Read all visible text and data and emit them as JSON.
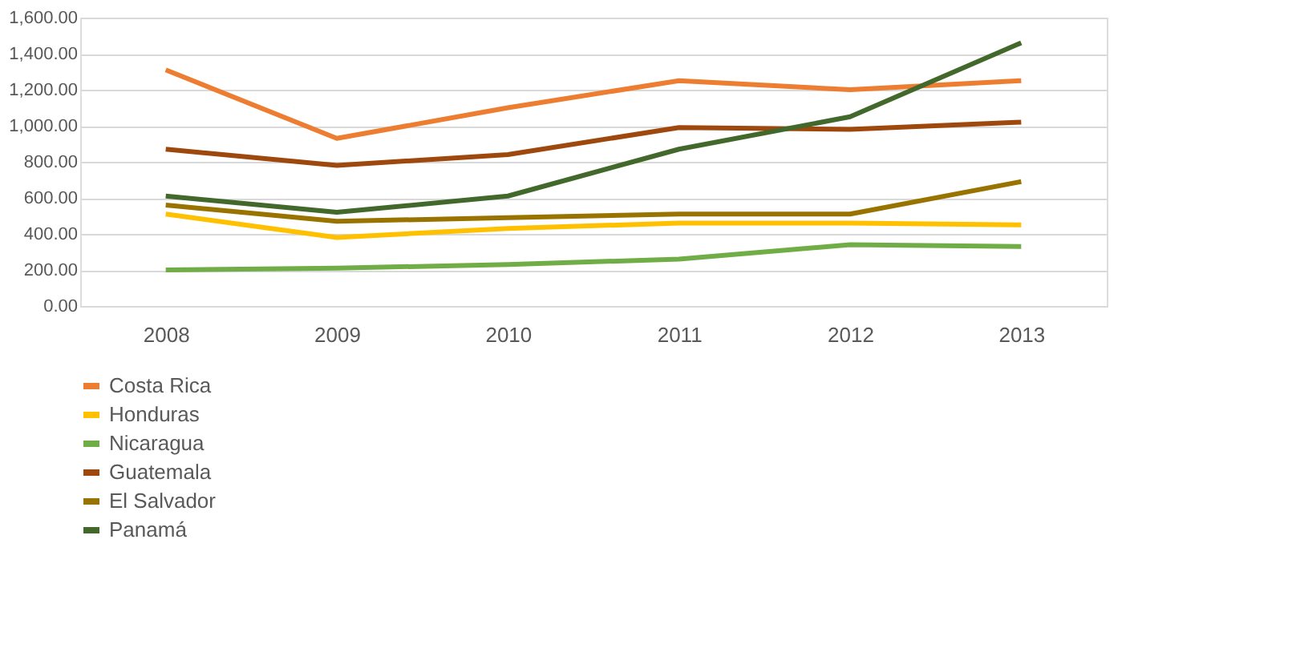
{
  "chart_data": {
    "type": "line",
    "categories": [
      "2008",
      "2009",
      "2010",
      "2011",
      "2012",
      "2013"
    ],
    "series": [
      {
        "name": "Costa Rica",
        "color": "#ed7d31",
        "values": [
          1310,
          930,
          1100,
          1250,
          1200,
          1250
        ]
      },
      {
        "name": "Honduras",
        "color": "#ffc000",
        "values": [
          510,
          380,
          430,
          460,
          460,
          450
        ]
      },
      {
        "name": "Nicaragua",
        "color": "#70ad47",
        "values": [
          200,
          210,
          230,
          260,
          340,
          330
        ]
      },
      {
        "name": "Guatemala",
        "color": "#9e480e",
        "values": [
          870,
          780,
          840,
          990,
          980,
          1020
        ]
      },
      {
        "name": "El Salvador",
        "color": "#997300",
        "values": [
          560,
          470,
          490,
          510,
          510,
          690
        ]
      },
      {
        "name": "Panamá",
        "color": "#43682b",
        "values": [
          610,
          520,
          610,
          870,
          1050,
          1460
        ]
      }
    ],
    "ylim": [
      0,
      1600
    ],
    "yticks": [
      {
        "value": 0,
        "label": "0.00"
      },
      {
        "value": 200,
        "label": "200.00"
      },
      {
        "value": 400,
        "label": "400.00"
      },
      {
        "value": 600,
        "label": "600.00"
      },
      {
        "value": 800,
        "label": "800.00"
      },
      {
        "value": 1000,
        "label": "1,000.00"
      },
      {
        "value": 1200,
        "label": "1,200.00"
      },
      {
        "value": 1400,
        "label": "1,400.00"
      },
      {
        "value": 1600,
        "label": "1,600.00"
      }
    ],
    "grid": "y",
    "legend": "bottom",
    "marker": "none",
    "line_style": "solid"
  }
}
